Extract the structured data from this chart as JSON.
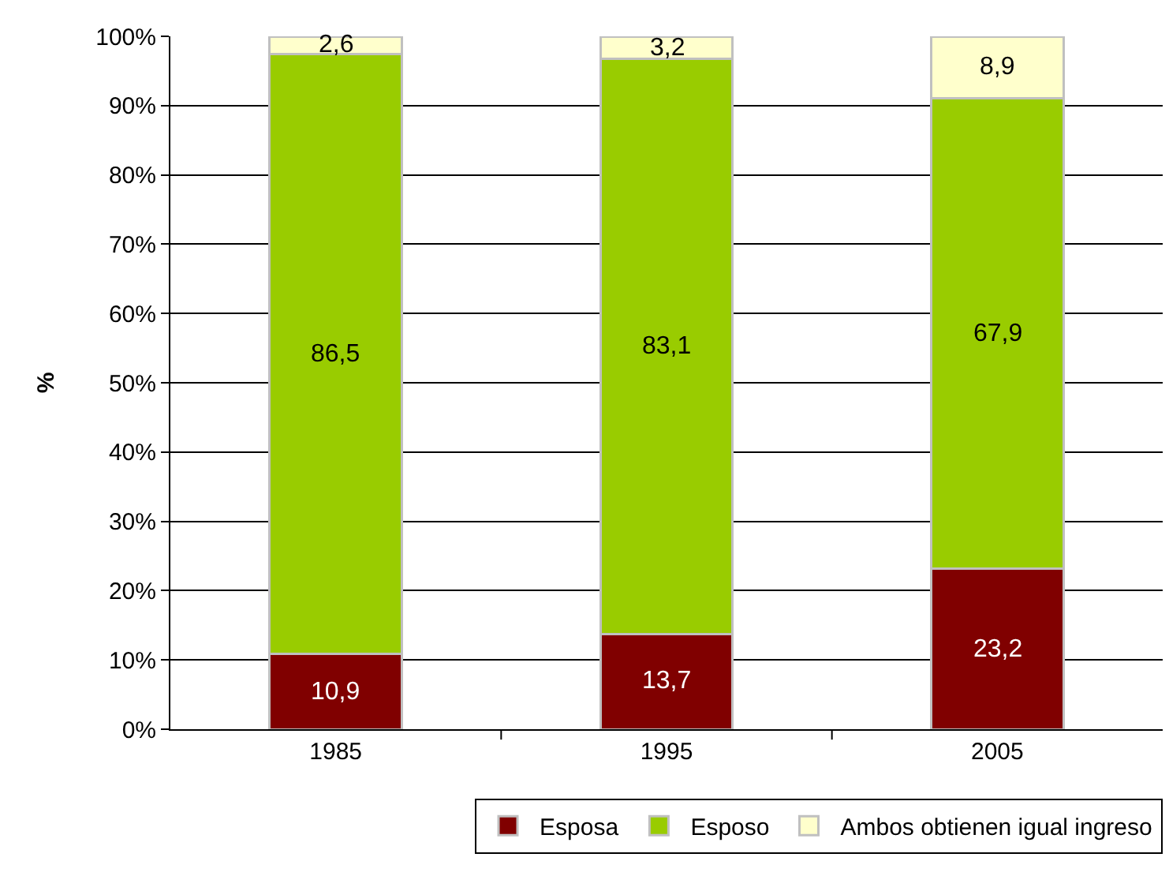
{
  "chart_data": {
    "type": "bar",
    "stacked": true,
    "ylabel": "%",
    "categories": [
      "1985",
      "1995",
      "2005"
    ],
    "series": [
      {
        "name": "Esposa",
        "color": "#800000",
        "values": [
          10.9,
          13.7,
          23.2
        ],
        "value_labels": [
          "10,9",
          "13,7",
          "23,2"
        ]
      },
      {
        "name": "Esposo",
        "color": "#99cc00",
        "values": [
          86.5,
          83.1,
          67.9
        ],
        "value_labels": [
          "86,5",
          "83,1",
          "67,9"
        ]
      },
      {
        "name": "Ambos obtienen igual ingreso",
        "color": "#ffffcc",
        "values": [
          2.6,
          3.2,
          8.9
        ],
        "value_labels": [
          "2,6",
          "3,2",
          "8,9"
        ]
      }
    ],
    "ylim": [
      0,
      100
    ],
    "yticks": [
      {
        "value": 0,
        "label": "0%"
      },
      {
        "value": 10,
        "label": "10%"
      },
      {
        "value": 20,
        "label": "20%"
      },
      {
        "value": 30,
        "label": "30%"
      },
      {
        "value": 40,
        "label": "40%"
      },
      {
        "value": 50,
        "label": "50%"
      },
      {
        "value": 60,
        "label": "60%"
      },
      {
        "value": 70,
        "label": "70%"
      },
      {
        "value": 80,
        "label": "80%"
      },
      {
        "value": 90,
        "label": "90%"
      },
      {
        "value": 100,
        "label": "100%"
      }
    ],
    "grid": "y",
    "legend": "bottom right"
  }
}
